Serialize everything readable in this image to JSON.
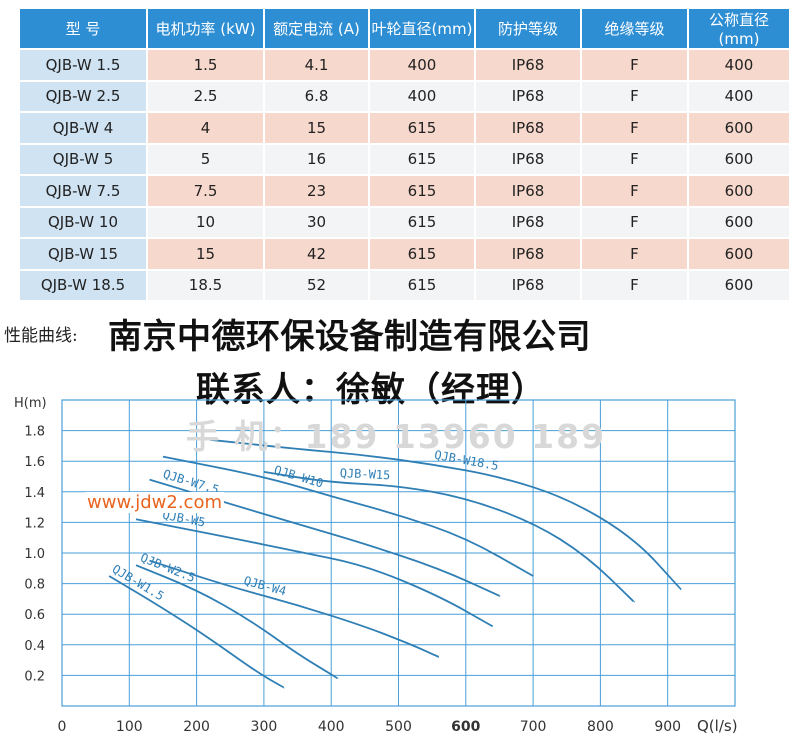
{
  "table": {
    "headers": [
      "型 号",
      "电机功率 (kW)",
      "额定电流 (A)",
      "叶轮直径(mm)",
      "防护等级",
      "绝缘等级",
      "公称直径(mm)"
    ],
    "rows": [
      [
        "QJB-W 1.5",
        "1.5",
        "4.1",
        "400",
        "IP68",
        "F",
        "400"
      ],
      [
        "QJB-W 2.5",
        "2.5",
        "6.8",
        "400",
        "IP68",
        "F",
        "400"
      ],
      [
        "QJB-W 4",
        "4",
        "15",
        "615",
        "IP68",
        "F",
        "600"
      ],
      [
        "QJB-W 5",
        "5",
        "16",
        "615",
        "IP68",
        "F",
        "600"
      ],
      [
        "QJB-W 7.5",
        "7.5",
        "23",
        "615",
        "IP68",
        "F",
        "600"
      ],
      [
        "QJB-W 10",
        "10",
        "30",
        "615",
        "IP68",
        "F",
        "600"
      ],
      [
        "QJB-W 15",
        "15",
        "42",
        "615",
        "IP68",
        "F",
        "600"
      ],
      [
        "QJB-W 18.5",
        "18.5",
        "52",
        "615",
        "IP68",
        "F",
        "600"
      ]
    ]
  },
  "section_label": "性能曲线:",
  "company": "南京中德环保设备制造有限公司",
  "contact": "联系人：徐敏（经理）",
  "phone": "手 机：189 13960 189",
  "website": "www.jdw2.com",
  "colors": {
    "header": "#2e8ed4",
    "model_cell": "#cfe3f3",
    "row_peach": "#f7d8cc",
    "row_light": "#f3f4f6",
    "grid": "#4a9fd8",
    "curve": "#2f7fb5",
    "website": "#e8641e"
  },
  "chart_data": {
    "type": "line",
    "ylabel": "H(m)",
    "xlabel": "Q(l/s)",
    "xlim": [
      0,
      1000
    ],
    "ylim": [
      0,
      2.0
    ],
    "x_ticks": [
      "0",
      "100",
      "200",
      "300",
      "400",
      "500",
      "600",
      "700",
      "800",
      "900"
    ],
    "y_ticks": [
      "0.2",
      "0.4",
      "0.6",
      "0.8",
      "1.0",
      "1.2",
      "1.4",
      "1.6",
      "1.8"
    ],
    "series": [
      {
        "name": "QJB-W1.5",
        "x": [
          70,
          150,
          220,
          290,
          330
        ],
        "y": [
          0.85,
          0.64,
          0.44,
          0.22,
          0.12
        ]
      },
      {
        "name": "QJB-W2.5",
        "x": [
          110,
          200,
          280,
          350,
          410
        ],
        "y": [
          0.92,
          0.76,
          0.56,
          0.34,
          0.18
        ]
      },
      {
        "name": "QJB-W4",
        "x": [
          130,
          250,
          350,
          450,
          520,
          560
        ],
        "y": [
          0.95,
          0.78,
          0.66,
          0.52,
          0.4,
          0.32
        ]
      },
      {
        "name": "QJB-W5",
        "x": [
          110,
          250,
          350,
          450,
          560,
          640
        ],
        "y": [
          1.22,
          1.1,
          1.01,
          0.92,
          0.72,
          0.52
        ]
      },
      {
        "name": "QJB-W7.5",
        "x": [
          130,
          250,
          350,
          450,
          560,
          650
        ],
        "y": [
          1.48,
          1.32,
          1.19,
          1.06,
          0.9,
          0.72
        ]
      },
      {
        "name": "QJB-W10",
        "x": [
          150,
          300,
          400,
          500,
          600,
          700
        ],
        "y": [
          1.63,
          1.5,
          1.37,
          1.25,
          1.1,
          0.85
        ]
      },
      {
        "name": "QJB-W15",
        "x": [
          300,
          400,
          500,
          600,
          700,
          780,
          850
        ],
        "y": [
          1.53,
          1.46,
          1.44,
          1.36,
          1.2,
          0.98,
          0.68
        ]
      },
      {
        "name": "QJB-W18.5",
        "x": [
          220,
          350,
          450,
          550,
          650,
          750,
          850,
          920
        ],
        "y": [
          1.74,
          1.68,
          1.64,
          1.58,
          1.5,
          1.36,
          1.1,
          0.76
        ]
      }
    ]
  }
}
